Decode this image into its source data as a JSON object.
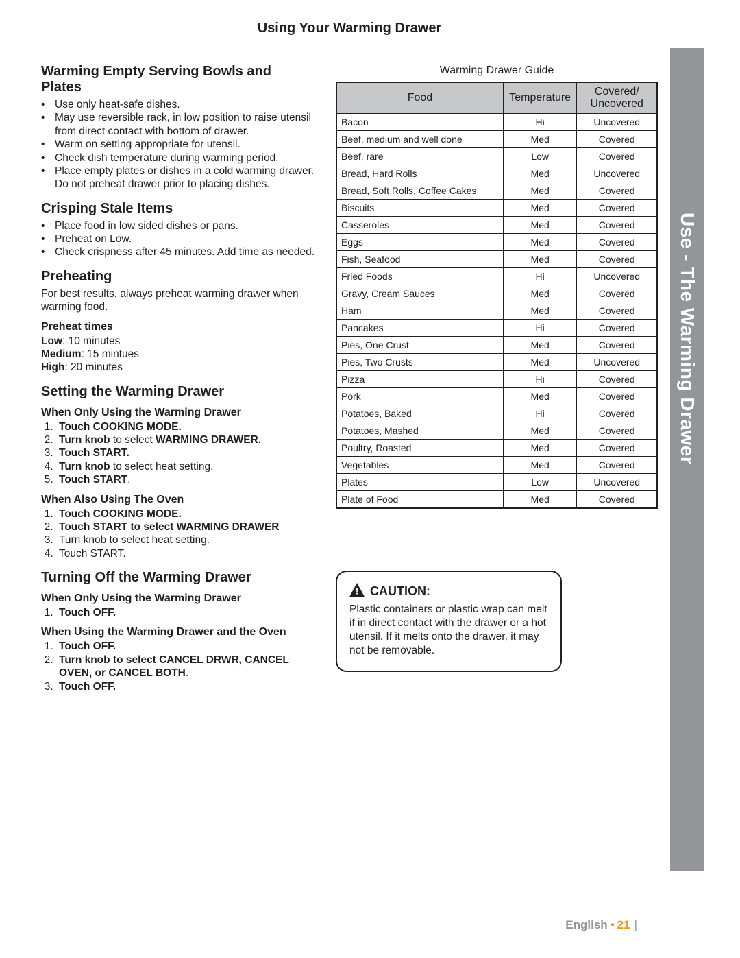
{
  "page_title": "Using Your Warming Drawer",
  "side_tab": "Use - The Warming Drawer",
  "footer": {
    "language": "English",
    "page": "21"
  },
  "sections": {
    "bowls": {
      "heading": "Warming Empty Serving Bowls and Plates",
      "items": [
        "Use only heat-safe dishes.",
        "May use reversible rack, in low position to raise utensil from direct contact with bottom of drawer.",
        "Warm on setting appropriate for utensil.",
        "Check dish temperature during warming period.",
        "Place empty plates or dishes in a cold warming drawer.  Do not preheat drawer prior to placing dishes."
      ]
    },
    "crisping": {
      "heading": "Crisping Stale Items",
      "items": [
        "Place food in low sided dishes or pans.",
        "Preheat on Low.",
        "Check crispness after 45 minutes. Add time as needed."
      ]
    },
    "preheating": {
      "heading": "Preheating",
      "intro": "For best results, always preheat warming drawer when warming food.",
      "times_heading": "Preheat times",
      "times": [
        {
          "label": "Low",
          "value": ":  10 minutes"
        },
        {
          "label": "Medium",
          "value": ": 15 mintues"
        },
        {
          "label": "High",
          "value": ":  20 minutes"
        }
      ]
    },
    "setting": {
      "heading": "Setting the Warming Drawer",
      "sub1_heading": "When Only Using the Warming Drawer",
      "sub1_steps": [
        {
          "bold": "Touch COOKING MODE."
        },
        {
          "bold_prefix": "Turn knob",
          "rest": " to select ",
          "bold_suffix": "WARMING DRAWER."
        },
        {
          "bold": "Touch START."
        },
        {
          "bold_prefix": "Turn knob",
          "rest": " to select heat setting."
        },
        {
          "bold": "Touch START",
          "tail": "."
        }
      ],
      "sub2_heading": "When Also Using The Oven",
      "sub2_steps": [
        {
          "bold": "Touch COOKING MODE."
        },
        {
          "bold": "Touch START to select WARMING DRAWER"
        },
        {
          "plain": "Turn knob to select heat setting."
        },
        {
          "plain": "Touch START."
        }
      ]
    },
    "turning_off": {
      "heading": "Turning Off the Warming Drawer",
      "sub1_heading": "When Only Using the Warming Drawer",
      "sub1_steps": [
        {
          "bold": "Touch OFF."
        }
      ],
      "sub2_heading": "When Using the Warming Drawer  and the Oven",
      "sub2_steps": [
        {
          "bold": "Touch OFF."
        },
        {
          "bold": "Turn knob to select CANCEL DRWR, CANCEL OVEN, or CANCEL BOTH",
          "tail": "."
        },
        {
          "bold": "Touch OFF."
        }
      ]
    }
  },
  "guide": {
    "title": "Warming Drawer Guide",
    "columns": [
      "Food",
      "Temperature",
      "Covered/ Uncovered"
    ],
    "rows": [
      [
        "Bacon",
        "Hi",
        "Uncovered"
      ],
      [
        "Beef, medium and well done",
        "Med",
        "Covered"
      ],
      [
        "Beef, rare",
        "Low",
        "Covered"
      ],
      [
        "Bread, Hard Rolls",
        "Med",
        "Uncovered"
      ],
      [
        "Bread, Soft Rolls, Coffee Cakes",
        "Med",
        "Covered"
      ],
      [
        "Biscuits",
        "Med",
        "Covered"
      ],
      [
        "Casseroles",
        "Med",
        "Covered"
      ],
      [
        "Eggs",
        "Med",
        "Covered"
      ],
      [
        "Fish, Seafood",
        "Med",
        "Covered"
      ],
      [
        "Fried Foods",
        "Hi",
        "Uncovered"
      ],
      [
        "Gravy, Cream Sauces",
        "Med",
        "Covered"
      ],
      [
        "Ham",
        "Med",
        "Covered"
      ],
      [
        "Pancakes",
        "Hi",
        "Covered"
      ],
      [
        "Pies, One Crust",
        "Med",
        "Covered"
      ],
      [
        "Pies, Two Crusts",
        "Med",
        "Uncovered"
      ],
      [
        "Pizza",
        "Hi",
        "Covered"
      ],
      [
        "Pork",
        "Med",
        "Covered"
      ],
      [
        "Potatoes, Baked",
        "Hi",
        "Covered"
      ],
      [
        "Potatoes, Mashed",
        "Med",
        "Covered"
      ],
      [
        "Poultry, Roasted",
        "Med",
        "Covered"
      ],
      [
        "Vegetables",
        "Med",
        "Covered"
      ],
      [
        "Plates",
        "Low",
        "Uncovered"
      ],
      [
        "Plate of Food",
        "Med",
        "Covered"
      ]
    ]
  },
  "caution": {
    "label": "CAUTION:",
    "body": "Plastic containers or plastic wrap can melt if in direct contact with the drawer or a hot utensil.  If it melts onto the drawer, it may not be removable."
  }
}
